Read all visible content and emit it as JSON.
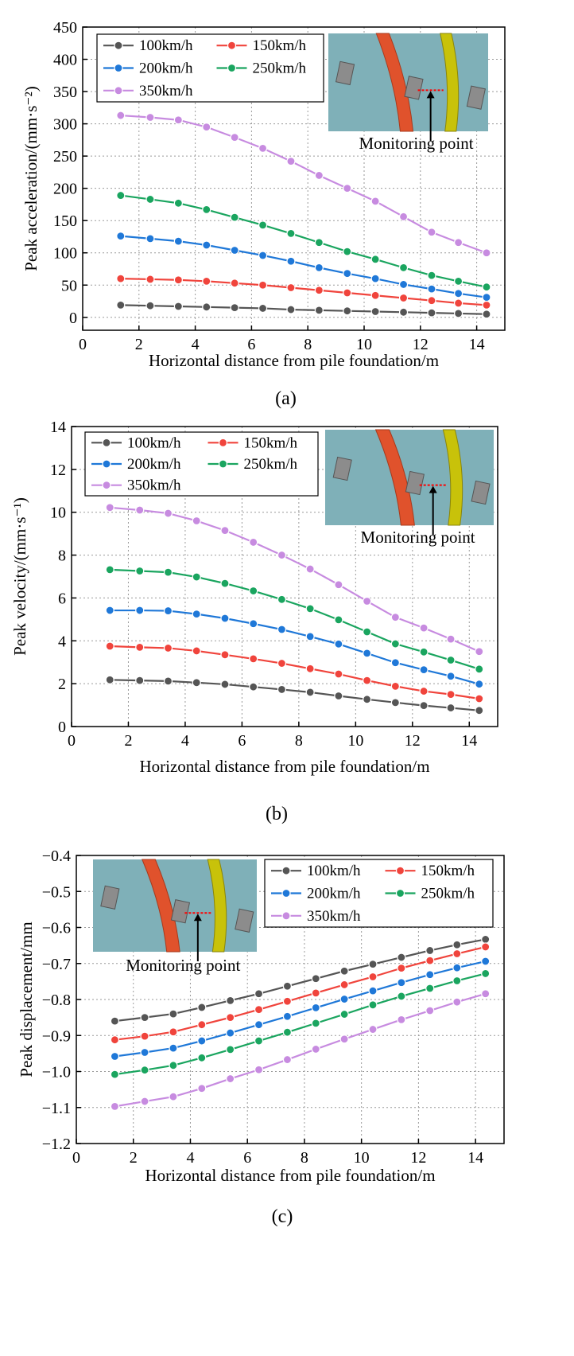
{
  "figure": {
    "panel_labels": [
      "(a)",
      "(b)",
      "(c)"
    ]
  },
  "inset": {
    "caption": "Monitoring point",
    "colors": {
      "ground": "#7fb0b8",
      "red_pile": "#e0522c",
      "yellow_pile": "#c8c20a",
      "block": "#8c8c8c",
      "marker": "#ff0000"
    }
  },
  "chart_data": [
    {
      "type": "line",
      "panel": "a",
      "title": "",
      "xlabel": "Horizontal distance from pile foundation/m",
      "ylabel": "Peak acceleration/(mm·s⁻²)",
      "xlim": [
        0,
        15
      ],
      "ylim": [
        -20,
        450
      ],
      "xticks": [
        0,
        2,
        4,
        6,
        8,
        10,
        12,
        14
      ],
      "yticks": [
        0,
        50,
        100,
        150,
        200,
        250,
        300,
        350,
        400,
        450
      ],
      "grid": true,
      "legend_position": "top-left",
      "x": [
        1.35,
        2.4,
        3.4,
        4.4,
        5.4,
        6.4,
        7.4,
        8.4,
        9.4,
        10.4,
        11.4,
        12.4,
        13.35,
        14.35
      ],
      "series": [
        {
          "name": "100km/h",
          "color": "#555555",
          "values": [
            19,
            18,
            17,
            16,
            15,
            14,
            12,
            11,
            10,
            9,
            8,
            7,
            6,
            5
          ]
        },
        {
          "name": "150km/h",
          "color": "#f0443c",
          "values": [
            60,
            59,
            58,
            56,
            53,
            50,
            46,
            42,
            38,
            34,
            30,
            26,
            22,
            19
          ]
        },
        {
          "name": "200km/h",
          "color": "#1f78d8",
          "values": [
            126,
            122,
            118,
            112,
            104,
            96,
            87,
            77,
            68,
            60,
            51,
            44,
            37,
            31
          ]
        },
        {
          "name": "250km/h",
          "color": "#1aa55f",
          "values": [
            189,
            183,
            177,
            167,
            155,
            143,
            130,
            116,
            102,
            90,
            77,
            65,
            56,
            47
          ]
        },
        {
          "name": "350km/h",
          "color": "#c78be0",
          "values": [
            313,
            310,
            306,
            295,
            279,
            262,
            242,
            220,
            200,
            180,
            156,
            132,
            116,
            100
          ]
        }
      ]
    },
    {
      "type": "line",
      "panel": "b",
      "title": "",
      "xlabel": "Horizontal distance from pile foundation/m",
      "ylabel": "Peak velocity/(mm·s⁻¹)",
      "xlim": [
        0,
        15
      ],
      "ylim": [
        0,
        14
      ],
      "xticks": [
        0,
        2,
        4,
        6,
        8,
        10,
        12,
        14
      ],
      "yticks": [
        0,
        2,
        4,
        6,
        8,
        10,
        12,
        14
      ],
      "grid": true,
      "legend_position": "top-left",
      "x": [
        1.35,
        2.4,
        3.4,
        4.4,
        5.4,
        6.4,
        7.4,
        8.4,
        9.4,
        10.4,
        11.4,
        12.4,
        13.35,
        14.35
      ],
      "series": [
        {
          "name": "100km/h",
          "color": "#555555",
          "values": [
            2.18,
            2.15,
            2.12,
            2.05,
            1.97,
            1.85,
            1.73,
            1.6,
            1.43,
            1.27,
            1.12,
            0.98,
            0.87,
            0.75
          ]
        },
        {
          "name": "150km/h",
          "color": "#f0443c",
          "values": [
            3.75,
            3.7,
            3.66,
            3.53,
            3.35,
            3.16,
            2.95,
            2.7,
            2.45,
            2.15,
            1.88,
            1.65,
            1.5,
            1.3
          ]
        },
        {
          "name": "200km/h",
          "color": "#1f78d8",
          "values": [
            5.42,
            5.42,
            5.4,
            5.25,
            5.05,
            4.8,
            4.53,
            4.2,
            3.85,
            3.42,
            2.98,
            2.65,
            2.35,
            1.98
          ]
        },
        {
          "name": "250km/h",
          "color": "#1aa55f",
          "values": [
            7.32,
            7.26,
            7.2,
            6.98,
            6.68,
            6.33,
            5.93,
            5.5,
            4.98,
            4.42,
            3.86,
            3.48,
            3.1,
            2.68
          ]
        },
        {
          "name": "350km/h",
          "color": "#c78be0",
          "values": [
            10.22,
            10.1,
            9.95,
            9.6,
            9.15,
            8.6,
            8.0,
            7.35,
            6.62,
            5.85,
            5.1,
            4.6,
            4.08,
            3.5
          ]
        }
      ]
    },
    {
      "type": "line",
      "panel": "c",
      "title": "",
      "xlabel": "Horizontal distance from pile foundation/m",
      "ylabel": "Peak displacement/mm",
      "xlim": [
        0,
        15
      ],
      "ylim": [
        -1.2,
        -0.4
      ],
      "xticks": [
        0,
        2,
        4,
        6,
        8,
        10,
        12,
        14
      ],
      "yticks": [
        -1.2,
        -1.1,
        -1.0,
        -0.9,
        -0.8,
        -0.7,
        -0.6,
        -0.5,
        -0.4
      ],
      "ytick_labels": [
        "−1.2",
        "−1.1",
        "−1.0",
        "−0.9",
        "−0.8",
        "−0.7",
        "−0.6",
        "−0.5",
        "−0.4"
      ],
      "grid": true,
      "legend_position": "top-right",
      "x": [
        1.35,
        2.4,
        3.4,
        4.4,
        5.4,
        6.4,
        7.4,
        8.4,
        9.4,
        10.4,
        11.4,
        12.4,
        13.35,
        14.35
      ],
      "series": [
        {
          "name": "100km/h",
          "color": "#555555",
          "values": [
            -0.86,
            -0.85,
            -0.84,
            -0.822,
            -0.803,
            -0.784,
            -0.763,
            -0.742,
            -0.721,
            -0.702,
            -0.683,
            -0.664,
            -0.648,
            -0.633
          ]
        },
        {
          "name": "150km/h",
          "color": "#f0443c",
          "values": [
            -0.912,
            -0.902,
            -0.89,
            -0.87,
            -0.85,
            -0.828,
            -0.805,
            -0.782,
            -0.759,
            -0.737,
            -0.713,
            -0.692,
            -0.673,
            -0.654
          ]
        },
        {
          "name": "200km/h",
          "color": "#1f78d8",
          "values": [
            -0.958,
            -0.947,
            -0.935,
            -0.915,
            -0.893,
            -0.87,
            -0.847,
            -0.823,
            -0.799,
            -0.776,
            -0.753,
            -0.731,
            -0.712,
            -0.694
          ]
        },
        {
          "name": "250km/h",
          "color": "#1aa55f",
          "values": [
            -1.008,
            -0.996,
            -0.983,
            -0.962,
            -0.939,
            -0.915,
            -0.891,
            -0.866,
            -0.841,
            -0.815,
            -0.791,
            -0.769,
            -0.748,
            -0.728
          ]
        },
        {
          "name": "350km/h",
          "color": "#c78be0",
          "values": [
            -1.097,
            -1.083,
            -1.07,
            -1.047,
            -1.02,
            -0.995,
            -0.967,
            -0.938,
            -0.91,
            -0.883,
            -0.856,
            -0.831,
            -0.807,
            -0.784
          ]
        }
      ]
    }
  ]
}
